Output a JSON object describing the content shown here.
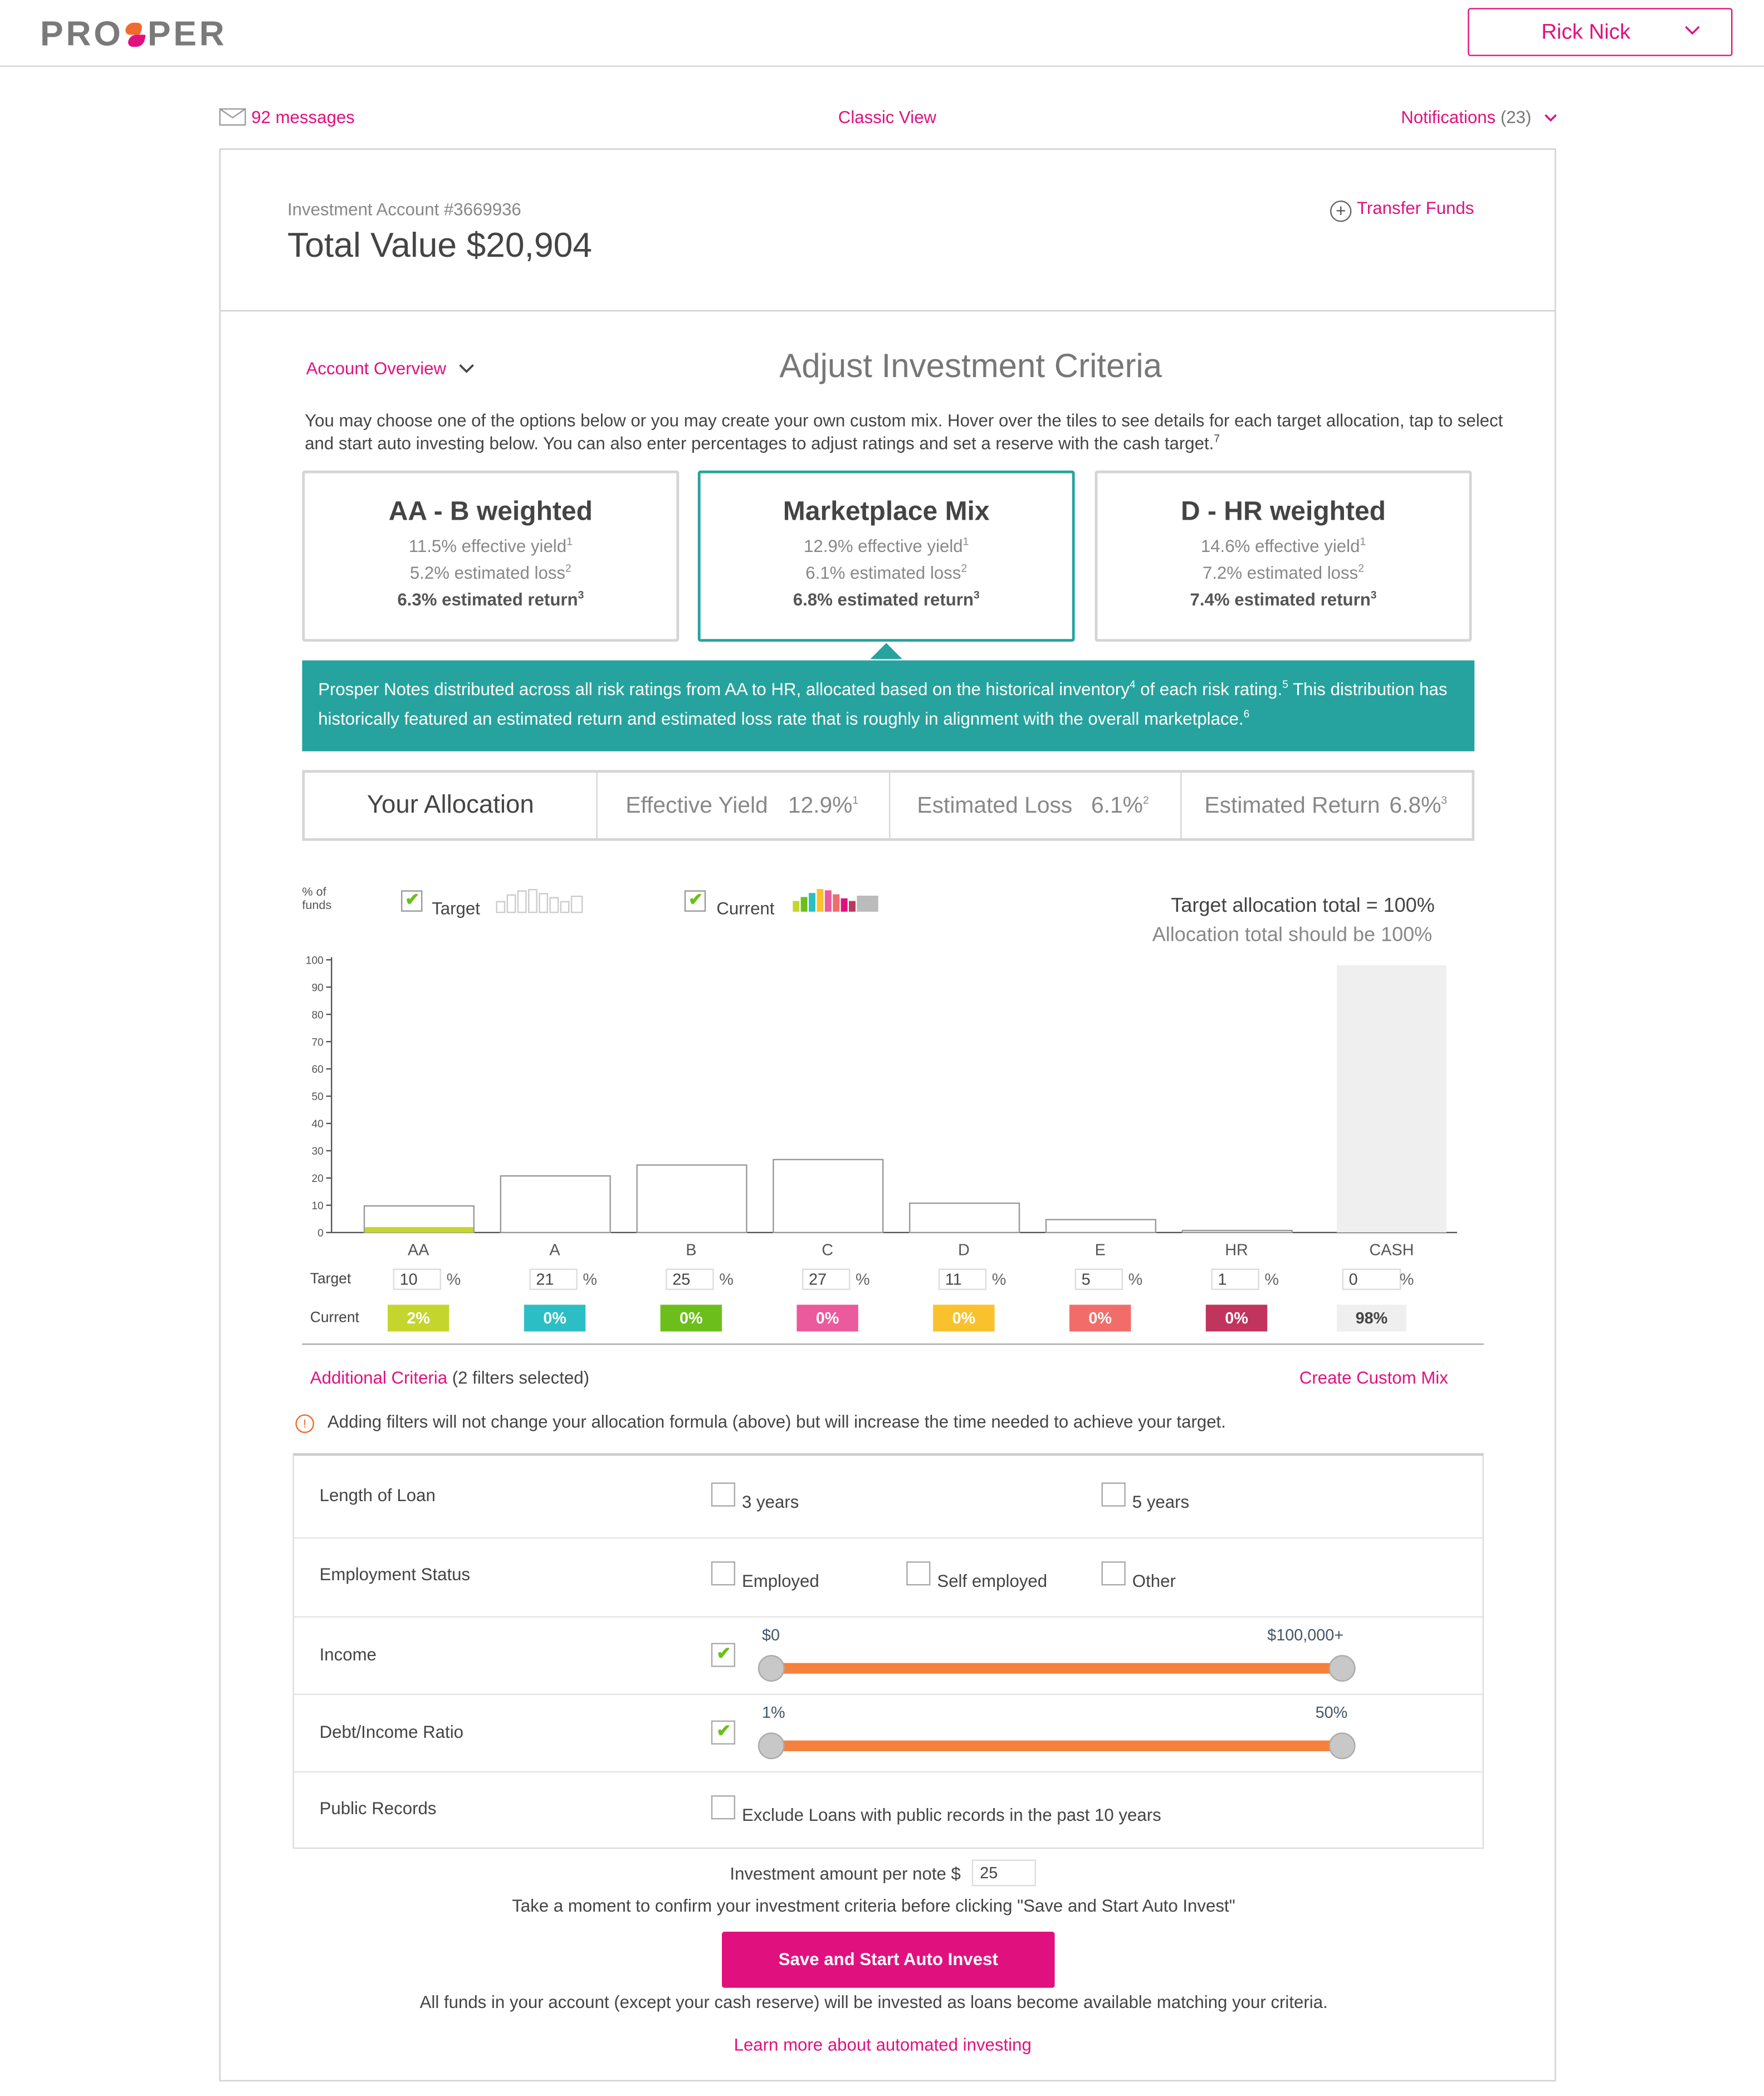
{
  "header": {
    "logo": "PROSPER",
    "logo_left": "PRO",
    "logo_right": "PER",
    "user_name": "Rick Nick"
  },
  "subnav": {
    "messages": "92 messages",
    "classic_view": "Classic View",
    "notifications": "Notifications",
    "notifications_count": "(23)"
  },
  "account": {
    "label": "Investment Account #3669936",
    "total": "Total Value $20,904",
    "transfer": "Transfer Funds"
  },
  "criteria": {
    "overview": "Account Overview",
    "title": "Adjust Investment Criteria",
    "intro": "You may choose one of the options below or you may create your own custom mix. Hover over the tiles to see details for each target allocation, tap to select and start auto investing below. You can also enter percentages to adjust ratings and set a reserve with the cash target.",
    "intro_sup": "7"
  },
  "tiles": [
    {
      "title": "AA - B weighted",
      "yield": "11.5% effective yield",
      "loss": "5.2% estimated loss",
      "ret": "6.3% estimated return",
      "selected": false
    },
    {
      "title": "Marketplace Mix",
      "yield": "12.9% effective yield",
      "loss": "6.1% estimated loss",
      "ret": "6.8% estimated return",
      "selected": true
    },
    {
      "title": "D - HR weighted",
      "yield": "14.6% effective yield",
      "loss": "7.2% estimated loss",
      "ret": "7.4% estimated return",
      "selected": false
    }
  ],
  "tile_sups": [
    "1",
    "2",
    "3"
  ],
  "description": {
    "part1": "Prosper Notes distributed across all risk ratings from AA to HR, allocated based on the historical inventory",
    "sup1": "4",
    "part2": " of each risk rating.",
    "sup2": "5",
    "part3": " This distribution has historically featured an estimated return and estimated loss rate that is roughly in alignment with the overall marketplace.",
    "sup3": "6"
  },
  "allocation": {
    "title": "Your Allocation",
    "yield_label": "Effective Yield",
    "yield_value": "12.9%",
    "loss_label": "Estimated Loss",
    "loss_value": "6.1%",
    "return_label": "Estimated Return",
    "return_value": "6.8%"
  },
  "legend": {
    "y_unit": "% of funds",
    "target": "Target",
    "current": "Current",
    "target_checked": true,
    "current_checked": true
  },
  "totals": {
    "target_total": "Target allocation total = 100%",
    "allocation_note": "Allocation total should be 100%"
  },
  "chart_data": {
    "type": "bar",
    "categories": [
      "AA",
      "A",
      "B",
      "C",
      "D",
      "E",
      "HR",
      "CASH"
    ],
    "series": [
      {
        "name": "Target",
        "values": [
          10,
          21,
          25,
          27,
          11,
          5,
          1,
          0
        ]
      },
      {
        "name": "Current",
        "values": [
          2,
          0,
          0,
          0,
          0,
          0,
          0,
          98
        ]
      }
    ],
    "ylim": [
      0,
      100
    ],
    "yticks": [
      "0",
      "10",
      "20",
      "30",
      "40",
      "50",
      "60",
      "70",
      "80",
      "90",
      "100"
    ],
    "colors": [
      "#c4d62d",
      "#2bbfc5",
      "#6cbf1a",
      "#eb5a9c",
      "#f9c12b",
      "#f26d6a",
      "#c0345e",
      "#efefef"
    ]
  },
  "rows": {
    "target_label": "Target",
    "current_label": "Current",
    "pct": "%",
    "targets": [
      "10",
      "21",
      "25",
      "27",
      "11",
      "5",
      "1",
      "0"
    ],
    "currents": [
      "2%",
      "0%",
      "0%",
      "0%",
      "0%",
      "0%",
      "0%",
      "98%"
    ]
  },
  "filters": {
    "additional": "Additional Criteria",
    "selected_count": "(2 filters selected)",
    "custom_mix": "Create Custom Mix",
    "warning_icon": "info-icon",
    "warning": "Adding filters will not change your allocation formula (above) but will increase the time needed to achieve your target.",
    "length_label": "Length of Loan",
    "length_opt1": "3 years",
    "length_opt2": "5 years",
    "employment_label": "Employment Status",
    "emp_opt1": "Employed",
    "emp_opt2": "Self employed",
    "emp_opt3": "Other",
    "income_label": "Income",
    "income_min": "$0",
    "income_max": "$100,000+",
    "dti_label": "Debt/Income Ratio",
    "dti_min": "1%",
    "dti_max": "50%",
    "public_label": "Public Records",
    "public_opt": "Exclude Loans with public records in the past 10 years"
  },
  "bottom": {
    "amount_label": "Investment amount per note $",
    "amount_value": "25",
    "confirm": "Take a moment to confirm your investment criteria before clicking \"Save and Start Auto Invest\"",
    "save": "Save and Start Auto Invest",
    "all_funds": "All funds in your account (except your cash reserve) will be invested as loans become available matching your criteria.",
    "learn": "Learn more about automated investing"
  },
  "colors": {
    "accent": "#e0117f",
    "teal": "#26a39e",
    "slider": "#f5813d"
  }
}
